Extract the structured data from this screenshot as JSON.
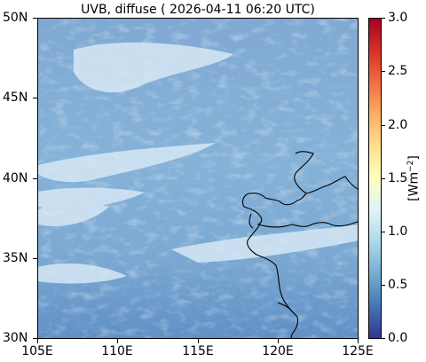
{
  "map": {
    "title": "UVB, diffuse ( 2026-04-11 06:20 UTC)",
    "lat_ticks": [
      "50N",
      "45N",
      "40N",
      "35N",
      "30N"
    ],
    "lon_ticks": [
      "105E",
      "110E",
      "115E",
      "120E",
      "125E"
    ],
    "extent": {
      "lon_min": 105,
      "lon_max": 125,
      "lat_min": 30,
      "lat_max": 50
    },
    "coastline_color": "#000000"
  },
  "colorbar": {
    "label_base": "[Wm",
    "label_exp": "−2",
    "label_close": "]",
    "ticks": [
      "3.0",
      "2.5",
      "2.0",
      "1.5",
      "1.0",
      "0.5",
      "0.0"
    ],
    "range": [
      0.0,
      3.0
    ],
    "colors": [
      "#313695",
      "#4575b4",
      "#74add1",
      "#abd9e9",
      "#e0f3f8",
      "#ffffbf",
      "#fee090",
      "#fdae61",
      "#f46d43",
      "#d73027",
      "#a50026"
    ]
  }
}
